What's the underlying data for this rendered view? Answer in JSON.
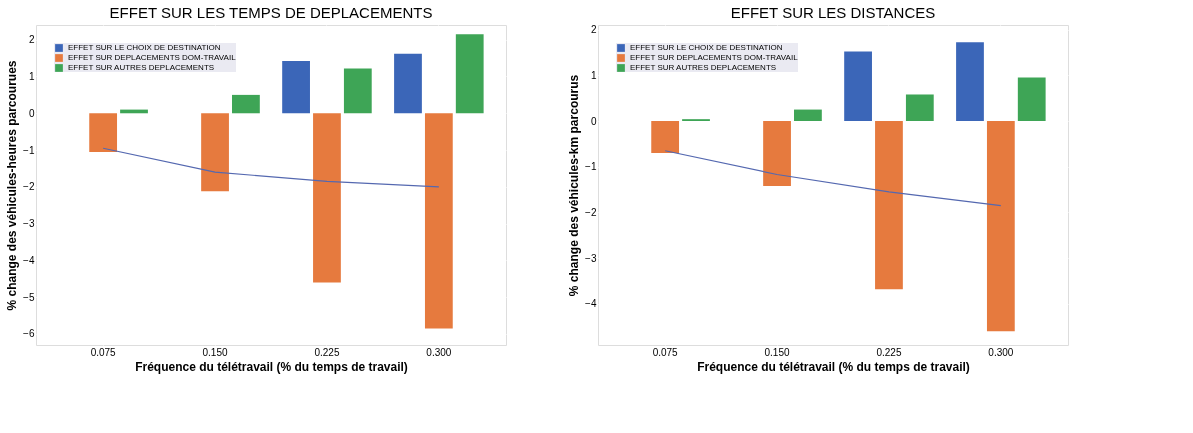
{
  "chart_data": [
    {
      "type": "bar",
      "title": "EFFET SUR LES TEMPS DE DEPLACEMENTS",
      "xlabel": "Fréquence du télétravail (% du temps de travail)",
      "ylabel": "% change des véhicules-heures parcourues",
      "categories": [
        "0.075",
        "0.150",
        "0.225",
        "0.300"
      ],
      "series": [
        {
          "name": "EFFET SUR LE CHOIX DE DESTINATION",
          "color": "#3b66b8",
          "values": [
            null,
            null,
            1.42,
            1.62
          ]
        },
        {
          "name": "EFFET SUR DEPLACEMENTS DOM-TRAVAIL",
          "color": "#e67a3e",
          "values": [
            -1.05,
            -2.12,
            -4.6,
            -5.85
          ]
        },
        {
          "name": "EFFET SUR AUTRES DEPLACEMENTS",
          "color": "#3ea556",
          "values": [
            0.1,
            0.5,
            1.22,
            2.15
          ]
        },
        {
          "type": "line",
          "color": "#5468b0",
          "values": [
            -0.95,
            -1.6,
            -1.85,
            -2.0
          ]
        }
      ],
      "ylim": [
        -6.3,
        2.4
      ],
      "yticks": [
        -6,
        -5,
        -4,
        -3,
        -2,
        -1,
        0,
        1,
        2
      ],
      "grid": true,
      "legend": "top left"
    },
    {
      "type": "bar",
      "title": "EFFET SUR LES DISTANCES",
      "xlabel": "Fréquence du télétravail (% du temps de travail)",
      "ylabel": "% change des véhicules-km parcourus",
      "categories": [
        "0.075",
        "0.150",
        "0.225",
        "0.300"
      ],
      "series": [
        {
          "name": "EFFET SUR LE CHOIX DE DESTINATION",
          "color": "#3b66b8",
          "values": [
            null,
            null,
            1.52,
            1.72
          ]
        },
        {
          "name": "EFFET SUR DEPLACEMENTS DOM-TRAVAIL",
          "color": "#e67a3e",
          "values": [
            -0.7,
            -1.42,
            -3.68,
            -4.6
          ]
        },
        {
          "name": "EFFET SUR AUTRES DEPLACEMENTS",
          "color": "#3ea556",
          "values": [
            0.04,
            0.25,
            0.58,
            0.95
          ]
        },
        {
          "type": "line",
          "color": "#5468b0",
          "values": [
            -0.65,
            -1.17,
            -1.55,
            -1.85
          ]
        }
      ],
      "ylim": [
        -4.9,
        2.1
      ],
      "yticks": [
        -4,
        -3,
        -2,
        -1,
        0,
        1,
        2
      ],
      "grid": true,
      "legend": "top left"
    }
  ]
}
